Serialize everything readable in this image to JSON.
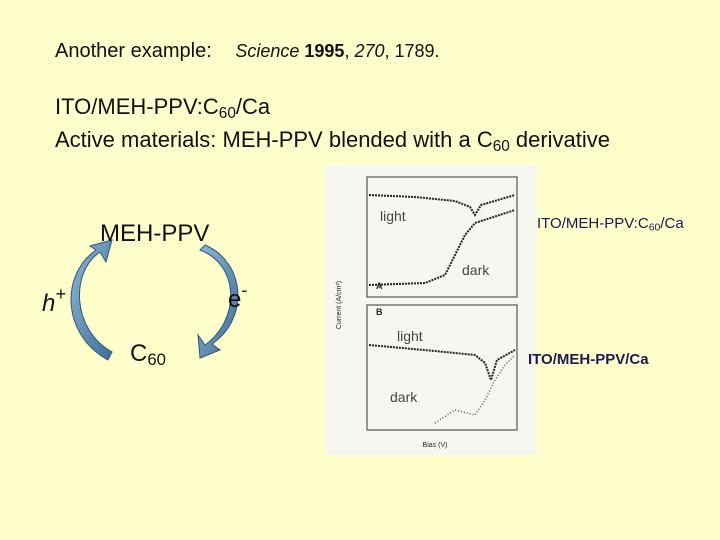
{
  "header": {
    "lead": "Another example:",
    "citation": [
      "Science",
      "1995",
      ",",
      "270",
      ", 1789."
    ]
  },
  "device": [
    "ITO/MEH-PPV:C",
    "60",
    "/Ca"
  ],
  "materials": [
    "Active materials: MEH-PPV blended with a C",
    "60",
    "derivative"
  ],
  "diagram": {
    "top": "MEH-PPV",
    "electron": [
      "e",
      "-"
    ],
    "hole": [
      "h",
      "+"
    ],
    "bottom": [
      "C",
      "60"
    ]
  },
  "plot": {
    "panel_a": {
      "letter": "A",
      "light": "light",
      "dark": "dark",
      "label": [
        "ITO/MEH-PPV:C",
        "60",
        "/Ca"
      ]
    },
    "panel_b": {
      "letter": "B",
      "light": "light",
      "dark": "dark",
      "label": "ITO/MEH-PPV/Ca"
    },
    "x_label": "Bias (V)",
    "y_label": "Current (A/cm²)"
  }
}
